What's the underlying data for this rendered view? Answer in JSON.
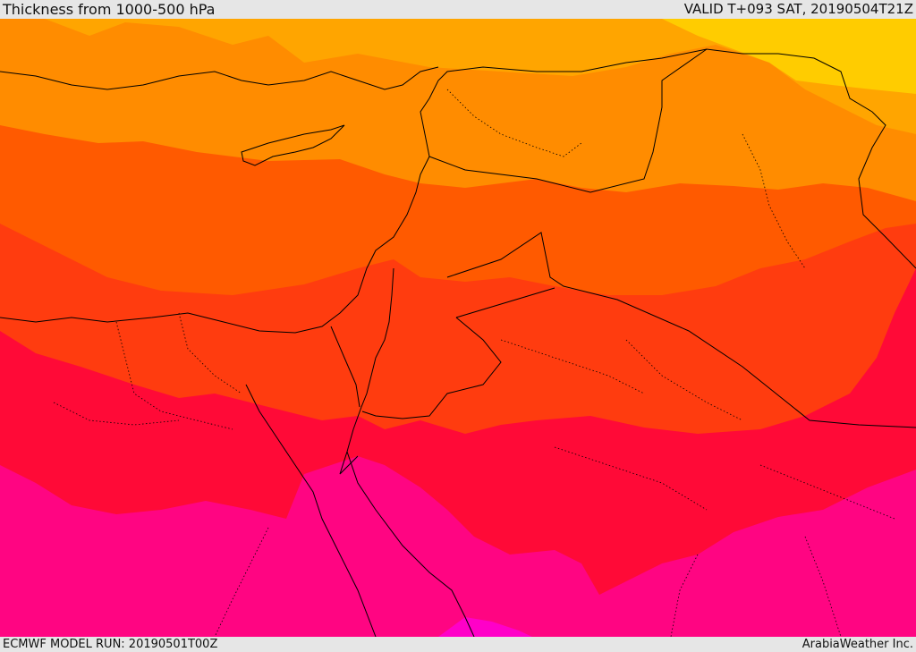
{
  "header": {
    "title": "Thickness from 1000-500 hPa",
    "valid": "VALID T+093 SAT, 20190504T21Z"
  },
  "footer": {
    "model_run": "ECMWF MODEL RUN: 20190501T00Z",
    "credit": "ArabiaWeather Inc."
  },
  "map": {
    "colors": {
      "band_1": "#ffcc00",
      "band_2": "#ffa500",
      "band_3": "#ff8c00",
      "band_4": "#ff5a00",
      "band_5": "#ff3c0f",
      "band_6": "#ff0a37",
      "band_7": "#ff0582",
      "band_8": "#ff00c8",
      "border": "#000000"
    }
  }
}
